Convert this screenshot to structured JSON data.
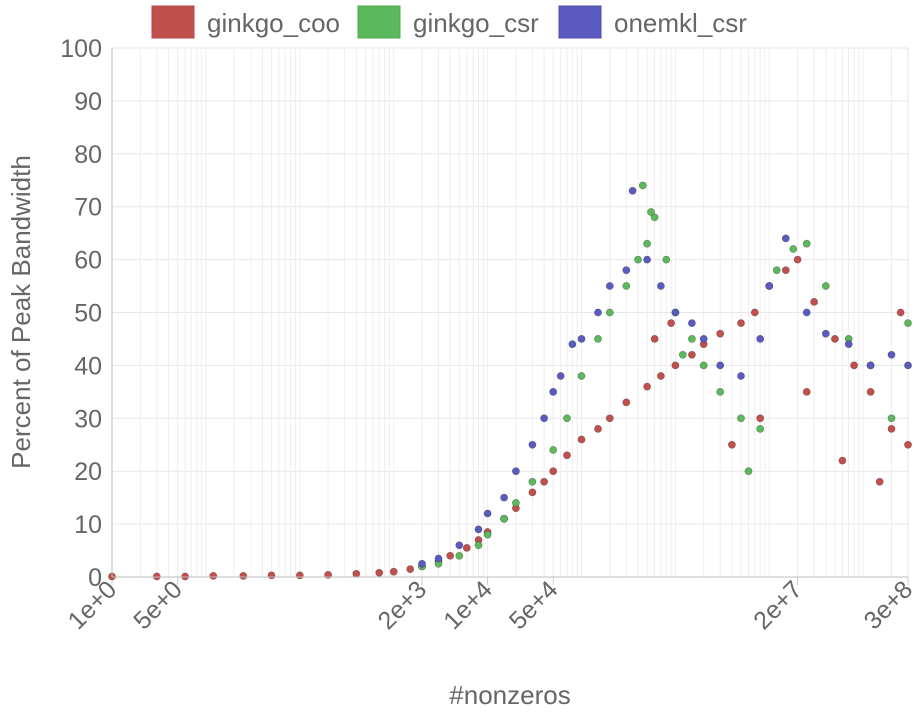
{
  "chart_data": {
    "type": "scatter",
    "title": "",
    "xlabel": "#nonzeros",
    "ylabel": "Percent of Peak Bandwidth",
    "x_scale": "log",
    "xlim": [
      1,
      300000000
    ],
    "ylim": [
      0,
      100
    ],
    "y_ticks": [
      0,
      10,
      20,
      30,
      40,
      50,
      60,
      70,
      80,
      90,
      100
    ],
    "x_tick_labels": [
      "1e+0",
      "5e+0",
      "2e+3",
      "1e+4",
      "5e+4",
      "2e+7",
      "3e+8"
    ],
    "x_tick_values": [
      1,
      5,
      2000,
      10000,
      50000,
      20000000,
      300000000
    ],
    "grid": true,
    "legend_position": "top",
    "series": [
      {
        "name": "ginkgo_coo",
        "color": "#c0504d",
        "x": [
          1,
          3,
          6,
          12,
          25,
          50,
          100,
          200,
          400,
          700,
          1000,
          1500,
          2000,
          3000,
          4000,
          6000,
          8000,
          10000,
          15000,
          20000,
          30000,
          40000,
          50000,
          70000,
          100000,
          150000,
          200000,
          300000,
          500000,
          700000,
          1000000,
          1500000,
          2000000,
          3000000,
          5000000,
          7000000,
          10000000,
          15000000,
          20000000,
          30000000,
          50000000,
          80000000,
          120000000,
          200000000,
          300000000,
          600000,
          900000,
          4000000,
          8000000,
          25000000,
          60000000,
          150000000,
          250000000
        ],
        "y": [
          0.1,
          0.1,
          0.1,
          0.2,
          0.2,
          0.3,
          0.3,
          0.4,
          0.6,
          0.8,
          1.0,
          1.5,
          2.0,
          3.0,
          4.0,
          5.5,
          7.0,
          8.5,
          11,
          13,
          16,
          18,
          20,
          23,
          26,
          28,
          30,
          33,
          36,
          38,
          40,
          42,
          44,
          46,
          48,
          50,
          55,
          58,
          60,
          52,
          45,
          40,
          35,
          28,
          25,
          45,
          48,
          25,
          30,
          35,
          22,
          18,
          50
        ],
        "values": [
          0.1,
          0.1,
          0.1,
          0.2,
          0.2,
          0.3,
          0.3,
          0.4,
          0.6,
          0.8,
          1.0,
          1.5,
          2.0,
          3.0,
          4.0,
          5.5,
          7.0,
          8.5,
          11,
          13,
          16,
          18,
          20,
          23,
          26,
          28,
          30,
          33,
          36,
          38,
          40,
          42,
          44,
          46,
          48,
          50,
          55,
          58,
          60,
          52,
          45,
          40,
          35,
          28,
          25,
          45,
          48,
          25,
          30,
          35,
          22,
          18,
          50
        ]
      },
      {
        "name": "ginkgo_csr",
        "color": "#5cb85c",
        "x": [
          2000,
          3000,
          5000,
          8000,
          10000,
          15000,
          20000,
          30000,
          50000,
          70000,
          100000,
          150000,
          200000,
          300000,
          400000,
          500000,
          600000,
          800000,
          1000000,
          1500000,
          2000000,
          3000000,
          5000000,
          8000000,
          12000000,
          18000000,
          25000000,
          40000000,
          70000000,
          120000000,
          200000000,
          300000000,
          450000,
          550000,
          1200000,
          6000000
        ],
        "y": [
          2.0,
          2.5,
          4.0,
          6.0,
          8.0,
          11,
          14,
          18,
          24,
          30,
          38,
          45,
          50,
          55,
          60,
          63,
          68,
          60,
          50,
          45,
          40,
          35,
          30,
          28,
          58,
          62,
          63,
          55,
          45,
          40,
          30,
          48,
          74,
          69,
          42,
          20
        ],
        "values": [
          2.0,
          2.5,
          4.0,
          6.0,
          8.0,
          11,
          14,
          18,
          24,
          30,
          38,
          45,
          50,
          55,
          60,
          63,
          68,
          60,
          50,
          45,
          40,
          35,
          30,
          28,
          58,
          62,
          63,
          55,
          45,
          40,
          30,
          48,
          74,
          69,
          42,
          20
        ]
      },
      {
        "name": "onemkl_csr",
        "color": "#5b5bbf",
        "x": [
          2000,
          3000,
          5000,
          8000,
          10000,
          15000,
          20000,
          30000,
          40000,
          50000,
          60000,
          80000,
          100000,
          150000,
          200000,
          300000,
          350000,
          500000,
          700000,
          1000000,
          1500000,
          2000000,
          3000000,
          5000000,
          8000000,
          10000000,
          15000000,
          25000000,
          40000000,
          70000000,
          120000000,
          200000000,
          300000000
        ],
        "y": [
          2.5,
          3.5,
          6.0,
          9.0,
          12,
          15,
          20,
          25,
          30,
          35,
          38,
          44,
          45,
          50,
          55,
          58,
          73,
          60,
          55,
          50,
          48,
          45,
          40,
          38,
          45,
          55,
          64,
          50,
          46,
          44,
          40,
          42,
          40
        ],
        "values": [
          2.5,
          3.5,
          6.0,
          9.0,
          12,
          15,
          20,
          25,
          30,
          35,
          38,
          44,
          45,
          50,
          55,
          58,
          73,
          60,
          55,
          50,
          48,
          45,
          40,
          38,
          45,
          55,
          64,
          50,
          46,
          44,
          40,
          42,
          40
        ]
      }
    ]
  }
}
